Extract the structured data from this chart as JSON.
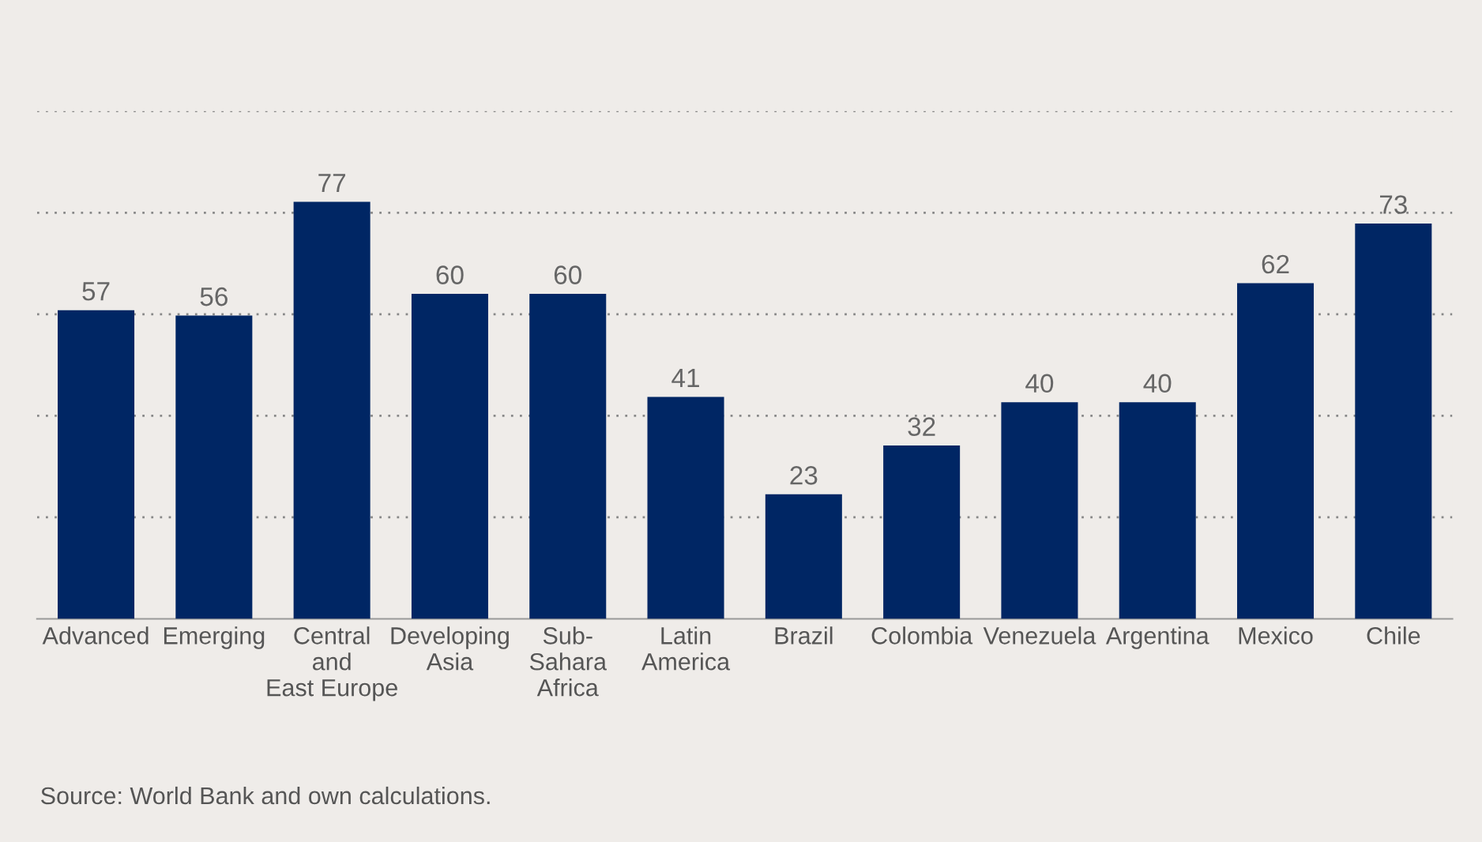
{
  "chart_data": {
    "type": "bar",
    "categories": [
      "Advanced",
      "Emerging",
      "Central\nand\nEast Europe",
      "Developing\nAsia",
      "Sub-\nSahara\nAfrica",
      "Latin\nAmerica",
      "Brazil",
      "Colombia",
      "Venezuela",
      "Argentina",
      "Mexico",
      "Chile"
    ],
    "values": [
      57,
      56,
      77,
      60,
      60,
      41,
      23,
      32,
      40,
      40,
      62,
      73
    ],
    "color": "#002664",
    "data_labels": true,
    "ylim": [
      0,
      93.75
    ],
    "yticks": [
      {
        "value": 18.75,
        "label": null
      },
      {
        "value": 37.5,
        "label": null
      },
      {
        "value": 56.25,
        "label": null
      },
      {
        "value": 75,
        "label": null
      },
      {
        "value": 93.75,
        "label": null
      }
    ],
    "grid": "y",
    "tick_labels": "x",
    "annotations": [
      "Source: World Bank and own calculations."
    ]
  }
}
